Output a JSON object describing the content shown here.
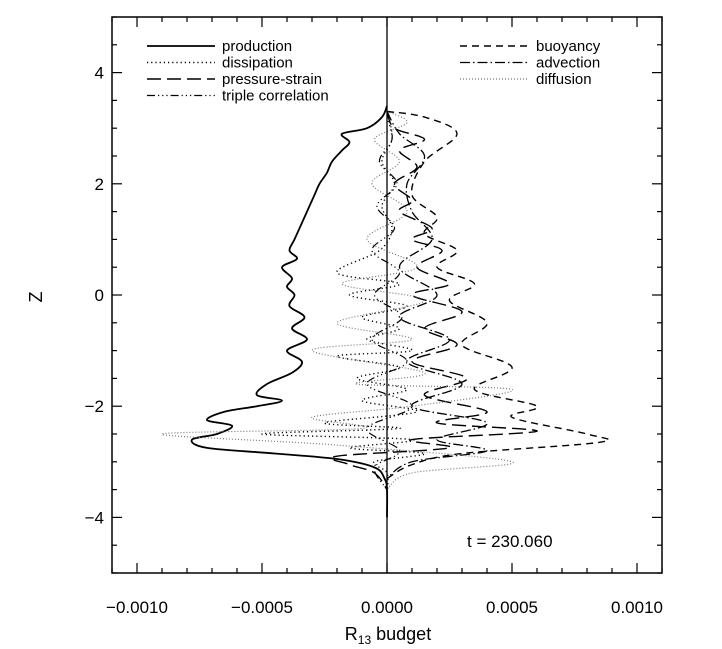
{
  "chart_data": {
    "type": "line",
    "title": "",
    "xlabel": "R",
    "xlabel_subscript": "13",
    "xlabel_suffix": " budget",
    "ylabel": "Z",
    "xlim": [
      -0.0011,
      0.0011
    ],
    "ylim": [
      -5,
      5
    ],
    "x_ticks": [
      -0.001,
      -0.0005,
      0.0,
      0.0005,
      0.001
    ],
    "x_tick_labels": [
      "−0.0010",
      "−0.0005",
      "0.0000",
      "0.0005",
      "0.0010"
    ],
    "y_ticks": [
      -4,
      -2,
      0,
      2,
      4
    ],
    "y_tick_labels": [
      "−4",
      "−2",
      "0",
      "2",
      "4"
    ],
    "grid": false,
    "legend_placement": "top (two columns)",
    "annotation": "t  =  230.060",
    "series": [
      {
        "name": "production",
        "dash": "none",
        "width": 1.8,
        "color": "#000000",
        "points": [
          [
            0.0,
            3.4
          ],
          [
            -2e-05,
            3.2
          ],
          [
            -8e-05,
            3.0
          ],
          [
            -0.00018,
            2.9
          ],
          [
            -0.00015,
            2.75
          ],
          [
            -0.00018,
            2.6
          ],
          [
            -0.00022,
            2.4
          ],
          [
            -0.00024,
            2.2
          ],
          [
            -0.00027,
            2.0
          ],
          [
            -0.00029,
            1.8
          ],
          [
            -0.00031,
            1.6
          ],
          [
            -0.00034,
            1.3
          ],
          [
            -0.00037,
            1.0
          ],
          [
            -0.00039,
            0.8
          ],
          [
            -0.00036,
            0.65
          ],
          [
            -0.00042,
            0.5
          ],
          [
            -0.00038,
            0.3
          ],
          [
            -0.0004,
            0.15
          ],
          [
            -0.00037,
            0.0
          ],
          [
            -0.00039,
            -0.2
          ],
          [
            -0.00033,
            -0.4
          ],
          [
            -0.00038,
            -0.6
          ],
          [
            -0.00032,
            -0.8
          ],
          [
            -0.0004,
            -1.0
          ],
          [
            -0.00034,
            -1.2
          ],
          [
            -0.00038,
            -1.4
          ],
          [
            -0.00048,
            -1.6
          ],
          [
            -0.00052,
            -1.8
          ],
          [
            -0.00042,
            -1.9
          ],
          [
            -0.00052,
            -2.0
          ],
          [
            -0.00065,
            -2.1
          ],
          [
            -0.00072,
            -2.25
          ],
          [
            -0.00062,
            -2.35
          ],
          [
            -0.00068,
            -2.5
          ],
          [
            -0.00078,
            -2.6
          ],
          [
            -0.00072,
            -2.75
          ],
          [
            -0.00045,
            -2.85
          ],
          [
            -0.0002,
            -2.95
          ],
          [
            -5e-05,
            -3.1
          ],
          [
            -1e-05,
            -3.3
          ],
          [
            0.0,
            -3.5
          ],
          [
            0.0,
            -4.0
          ]
        ]
      },
      {
        "name": "dissipation",
        "dash": "1.2,3",
        "width": 1.4,
        "color": "#000000",
        "points": [
          [
            0.0,
            3.2
          ],
          [
            2e-05,
            2.8
          ],
          [
            -2e-05,
            2.4
          ],
          [
            3e-05,
            2.0
          ],
          [
            -2e-05,
            1.6
          ],
          [
            2e-05,
            1.2
          ],
          [
            -3e-05,
            0.8
          ],
          [
            -0.0002,
            0.4
          ],
          [
            5e-05,
            0.2
          ],
          [
            -0.00015,
            0.0
          ],
          [
            8e-05,
            -0.2
          ],
          [
            -0.0001,
            -0.4
          ],
          [
            5e-05,
            -0.6
          ],
          [
            -8e-05,
            -0.8
          ],
          [
            0.0001,
            -1.0
          ],
          [
            -0.0002,
            -1.1
          ],
          [
            5e-05,
            -1.3
          ],
          [
            -0.00012,
            -1.5
          ],
          [
            8e-05,
            -1.7
          ],
          [
            -0.0001,
            -1.9
          ],
          [
            0.00012,
            -2.1
          ],
          [
            -0.00025,
            -2.3
          ],
          [
            5e-05,
            -2.4
          ],
          [
            -0.0005,
            -2.5
          ],
          [
            0.0001,
            -2.6
          ],
          [
            -0.00015,
            -2.75
          ],
          [
            0.00015,
            -2.85
          ],
          [
            -5e-05,
            -3.0
          ],
          [
            0.0,
            -3.2
          ],
          [
            0.0,
            -3.6
          ]
        ]
      },
      {
        "name": "pressure-strain",
        "dash": "14,6",
        "width": 1.4,
        "color": "#000000",
        "points": [
          [
            0.0,
            3.3
          ],
          [
            3e-05,
            3.0
          ],
          [
            0.00015,
            2.8
          ],
          [
            5e-05,
            2.6
          ],
          [
            0.00012,
            2.3
          ],
          [
            3e-05,
            2.0
          ],
          [
            0.0001,
            1.7
          ],
          [
            5e-05,
            1.5
          ],
          [
            0.00018,
            1.2
          ],
          [
            0.0001,
            1.0
          ],
          [
            0.00022,
            0.8
          ],
          [
            0.00012,
            0.5
          ],
          [
            0.00025,
            0.2
          ],
          [
            0.0001,
            0.0
          ],
          [
            0.0003,
            -0.3
          ],
          [
            0.00015,
            -0.6
          ],
          [
            0.00028,
            -0.9
          ],
          [
            0.0001,
            -1.2
          ],
          [
            0.00032,
            -1.5
          ],
          [
            0.00015,
            -1.8
          ],
          [
            0.0004,
            -2.1
          ],
          [
            0.0002,
            -2.3
          ],
          [
            0.0006,
            -2.45
          ],
          [
            0.0001,
            -2.6
          ],
          [
            0.00025,
            -2.75
          ],
          [
            -0.0002,
            -2.9
          ],
          [
            -0.00015,
            -3.05
          ],
          [
            -5e-05,
            -3.2
          ],
          [
            0.0,
            -3.5
          ]
        ]
      },
      {
        "name": "triple correlation",
        "dash": "8,3,1.2,3,1.2,3,1.2,3",
        "width": 1.2,
        "color": "#000000",
        "points": [
          [
            0.0,
            3.3
          ],
          [
            2e-05,
            2.8
          ],
          [
            -3e-05,
            2.4
          ],
          [
            4e-05,
            2.0
          ],
          [
            -4e-05,
            1.6
          ],
          [
            3e-05,
            1.2
          ],
          [
            -6e-05,
            0.8
          ],
          [
            5e-05,
            0.4
          ],
          [
            -5e-05,
            0.0
          ],
          [
            6e-05,
            -0.4
          ],
          [
            -6e-05,
            -0.8
          ],
          [
            8e-05,
            -1.2
          ],
          [
            -8e-05,
            -1.6
          ],
          [
            0.0001,
            -2.0
          ],
          [
            -8e-05,
            -2.4
          ],
          [
            5e-05,
            -2.8
          ],
          [
            -5e-05,
            -3.1
          ],
          [
            0.0,
            -3.5
          ]
        ]
      },
      {
        "name": "buoyancy",
        "dash": "7,5",
        "width": 1.4,
        "color": "#000000",
        "points": [
          [
            0.0,
            3.3
          ],
          [
            0.00015,
            3.2
          ],
          [
            0.00028,
            2.9
          ],
          [
            0.00015,
            2.4
          ],
          [
            0.0001,
            1.8
          ],
          [
            0.0002,
            1.4
          ],
          [
            0.00015,
            1.1
          ],
          [
            0.00028,
            0.8
          ],
          [
            0.0002,
            0.5
          ],
          [
            0.00035,
            0.2
          ],
          [
            0.00025,
            -0.1
          ],
          [
            0.0004,
            -0.5
          ],
          [
            0.0003,
            -0.9
          ],
          [
            0.0005,
            -1.3
          ],
          [
            0.00035,
            -1.7
          ],
          [
            0.0006,
            -2.0
          ],
          [
            0.0005,
            -2.2
          ],
          [
            0.0008,
            -2.5
          ],
          [
            0.00085,
            -2.65
          ],
          [
            0.0003,
            -2.85
          ],
          [
            0.0001,
            -3.05
          ],
          [
            0.0,
            -3.3
          ]
        ]
      },
      {
        "name": "advection",
        "dash": "10,3,1.5,3",
        "width": 1.3,
        "color": "#000000",
        "points": [
          [
            0.0,
            3.3
          ],
          [
            5e-05,
            2.9
          ],
          [
            0.00015,
            2.5
          ],
          [
            8e-05,
            2.0
          ],
          [
            0.0001,
            1.5
          ],
          [
            0.00018,
            1.0
          ],
          [
            5e-05,
            0.5
          ],
          [
            0.0002,
            0.0
          ],
          [
            5e-05,
            -0.4
          ],
          [
            0.00025,
            -0.8
          ],
          [
            8e-05,
            -1.2
          ],
          [
            0.0003,
            -1.6
          ],
          [
            0.0001,
            -2.0
          ],
          [
            0.0004,
            -2.3
          ],
          [
            0.0002,
            -2.6
          ],
          [
            0.0004,
            -2.8
          ],
          [
            0.0001,
            -3.0
          ],
          [
            0.0,
            -3.3
          ]
        ]
      },
      {
        "name": "diffusion",
        "dash": "1,2",
        "width": 1.2,
        "color": "#777777",
        "points": [
          [
            0.0,
            3.3
          ],
          [
            8e-05,
            3.1
          ],
          [
            -5e-05,
            2.8
          ],
          [
            5e-05,
            2.4
          ],
          [
            -6e-05,
            2.0
          ],
          [
            8e-05,
            1.5
          ],
          [
            -8e-05,
            1.0
          ],
          [
            0.00012,
            0.5
          ],
          [
            -0.00018,
            0.2
          ],
          [
            0.00015,
            -0.1
          ],
          [
            -0.0002,
            -0.5
          ],
          [
            0.0001,
            -0.8
          ],
          [
            -0.0003,
            -1.0
          ],
          [
            0.00015,
            -1.4
          ],
          [
            -0.00012,
            -1.6
          ],
          [
            0.0005,
            -1.7
          ],
          [
            0.0001,
            -2.0
          ],
          [
            -0.0003,
            -2.2
          ],
          [
            -0.0001,
            -2.4
          ],
          [
            -0.0009,
            -2.5
          ],
          [
            -0.0002,
            -2.7
          ],
          [
            0.0005,
            -3.0
          ],
          [
            0.0001,
            -3.2
          ],
          [
            0.0,
            -3.5
          ]
        ]
      }
    ]
  }
}
